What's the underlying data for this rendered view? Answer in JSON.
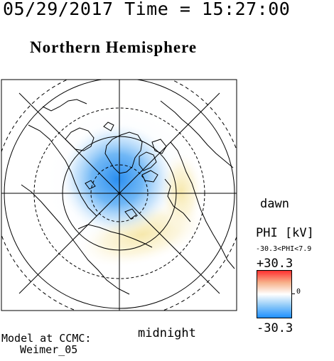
{
  "header": {
    "date_time": "05/29/2017 Time = 15:27:00",
    "hemisphere": "Northern Hemisphere"
  },
  "map": {
    "dawn_label": "dawn",
    "midnight_label": "midnight"
  },
  "model": {
    "line1": "Model at CCMC:",
    "line2": "Weimer_05"
  },
  "colorbar": {
    "title": "PHI [kV]",
    "range_text": "-30.3<PHI<7.9",
    "max_label": "+30.3",
    "min_label": "-30.3",
    "zero_label": "0",
    "colors": {
      "negative": "#1f8fff",
      "zero": "#ffffff",
      "positive": "#ff3030"
    }
  }
}
